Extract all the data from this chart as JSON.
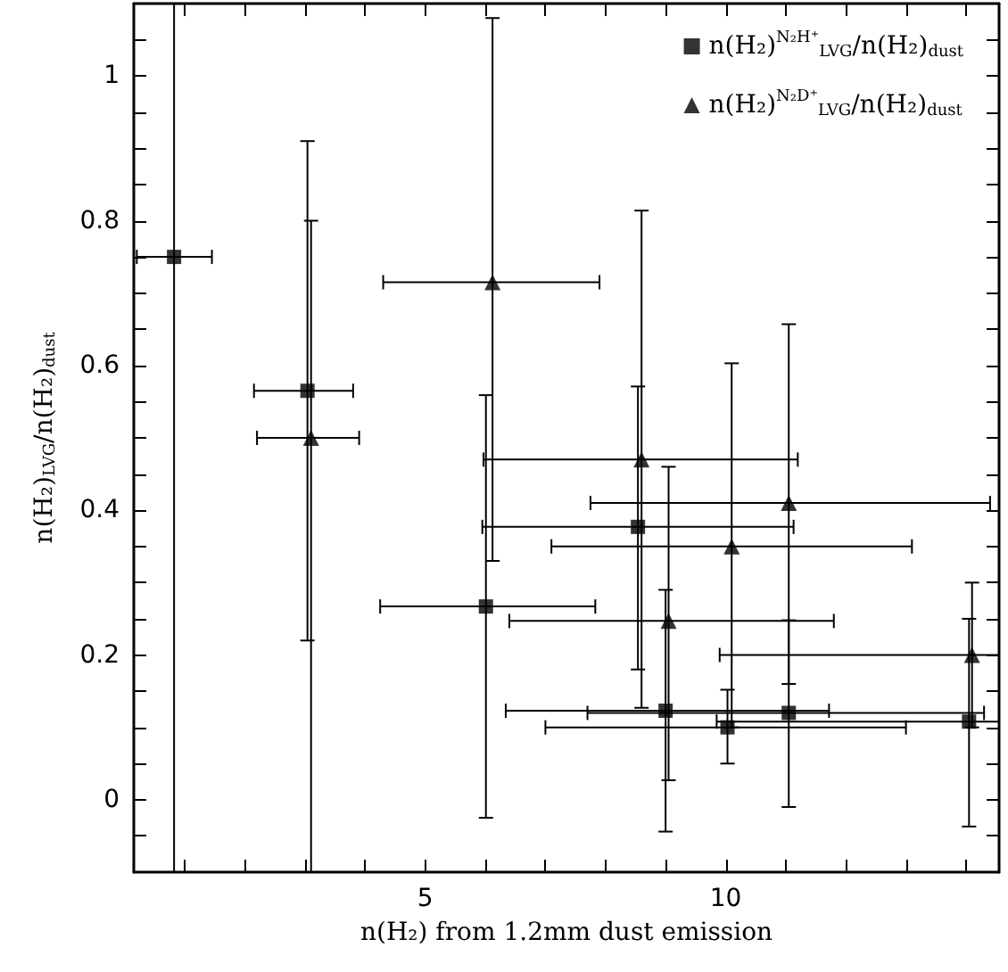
{
  "chart_data": {
    "type": "scatter",
    "xlabel": "n(H₂) from 1.2mm dust emission",
    "ylabel": "n(H₂)$_{LVG}$/n(H₂)$_{dust}$",
    "xlim": [
      0.15,
      14.55
    ],
    "ylim": [
      -0.1,
      1.1
    ],
    "xticks": [
      {
        "value": 1,
        "label": null
      },
      {
        "value": 2,
        "label": null
      },
      {
        "value": 3,
        "label": null
      },
      {
        "value": 4,
        "label": null
      },
      5,
      {
        "value": 6,
        "label": null
      },
      {
        "value": 7,
        "label": null
      },
      {
        "value": 8,
        "label": null
      },
      {
        "value": 9,
        "label": null
      },
      10,
      {
        "value": 11,
        "label": null
      },
      {
        "value": 12,
        "label": null
      },
      {
        "value": 13,
        "label": null
      },
      {
        "value": 14,
        "label": null
      }
    ],
    "yticks": [
      {
        "value": -0.05,
        "label": null
      },
      0,
      {
        "value": 0.05,
        "label": null
      },
      {
        "value": 0.1,
        "label": null
      },
      {
        "value": 0.15,
        "label": null
      },
      0.2,
      {
        "value": 0.25,
        "label": null
      },
      {
        "value": 0.3,
        "label": null
      },
      {
        "value": 0.35,
        "label": null
      },
      0.4,
      {
        "value": 0.45,
        "label": null
      },
      {
        "value": 0.5,
        "label": null
      },
      {
        "value": 0.55,
        "label": null
      },
      0.6,
      {
        "value": 0.65,
        "label": null
      },
      {
        "value": 0.7,
        "label": null
      },
      {
        "value": 0.75,
        "label": null
      },
      0.8,
      {
        "value": 0.85,
        "label": null
      },
      {
        "value": 0.9,
        "label": null
      },
      {
        "value": 0.95,
        "label": null
      },
      1,
      {
        "value": 1.05,
        "label": null
      }
    ],
    "grid": false,
    "legend": "top right",
    "series": [
      {
        "name": "n(H₂)$^{N₂H⁺}$$_{LVG}$/n(H₂)$_{dust}$",
        "color": "#000000",
        "marker": "square",
        "x": [
          0.82,
          3.04,
          6.01,
          8.54,
          9.0,
          10.03,
          11.05,
          14.05
        ],
        "values": [
          0.75,
          0.565,
          0.267,
          0.377,
          0.123,
          0.1,
          0.12,
          0.108
        ],
        "errors": [
          [
            -0.1,
            1.1
          ],
          [
            0.22,
            0.91
          ],
          [
            -0.025,
            0.559
          ],
          [
            0.18,
            0.571
          ],
          [
            -0.044,
            0.29
          ],
          [
            0.05,
            0.152
          ],
          [
            -0.01,
            0.248
          ],
          [
            -0.037,
            0.25
          ]
        ],
        "xerrors": [
          [
            0.2,
            1.45
          ],
          [
            2.15,
            3.8
          ],
          [
            4.25,
            7.83
          ],
          [
            5.95,
            11.13
          ],
          [
            6.34,
            11.72
          ],
          [
            7.0,
            13.0
          ],
          [
            7.7,
            14.3
          ],
          [
            9.85,
            14.55
          ]
        ]
      },
      {
        "name": "n(H₂)$^{N₂D⁺}$$_{LVG}$/n(H₂)$_{dust}$",
        "color": "#000000",
        "marker": "triangle",
        "x": [
          3.1,
          6.12,
          8.6,
          9.05,
          10.1,
          11.05,
          14.1
        ],
        "values": [
          0.5,
          0.715,
          0.47,
          0.247,
          0.35,
          0.41,
          0.2
        ],
        "errors": [
          [
            -0.1,
            0.8
          ],
          [
            0.33,
            1.08
          ],
          [
            0.127,
            0.814
          ],
          [
            0.027,
            0.46
          ],
          [
            0.1,
            0.603
          ],
          [
            0.16,
            0.657
          ],
          [
            0.1,
            0.3
          ]
        ],
        "xerrors": [
          [
            2.2,
            3.9
          ],
          [
            4.3,
            7.9
          ],
          [
            5.97,
            11.2
          ],
          [
            6.4,
            11.8
          ],
          [
            7.1,
            13.1
          ],
          [
            7.75,
            14.4
          ],
          [
            9.9,
            14.55
          ]
        ]
      }
    ]
  }
}
